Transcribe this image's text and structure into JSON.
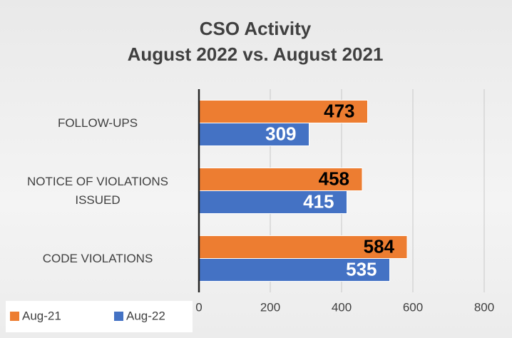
{
  "chart_data": {
    "type": "bar",
    "orientation": "horizontal",
    "title": "CSO Activity",
    "subtitle": "August 2022 vs. August 2021",
    "categories": [
      "FOLLOW-UPS",
      "NOTICE OF VIOLATIONS ISSUED",
      "CODE VIOLATIONS"
    ],
    "series": [
      {
        "name": "Aug-21",
        "color": "#ed7d31",
        "label_color": "#000000",
        "values": [
          473,
          458,
          584
        ]
      },
      {
        "name": "Aug-22",
        "color": "#4472c4",
        "label_color": "#ffffff",
        "values": [
          309,
          415,
          535
        ]
      }
    ],
    "xlim": [
      0,
      800
    ],
    "xticks": [
      0,
      200,
      400,
      600,
      800
    ],
    "grid": true,
    "legend": "bottom-left"
  }
}
